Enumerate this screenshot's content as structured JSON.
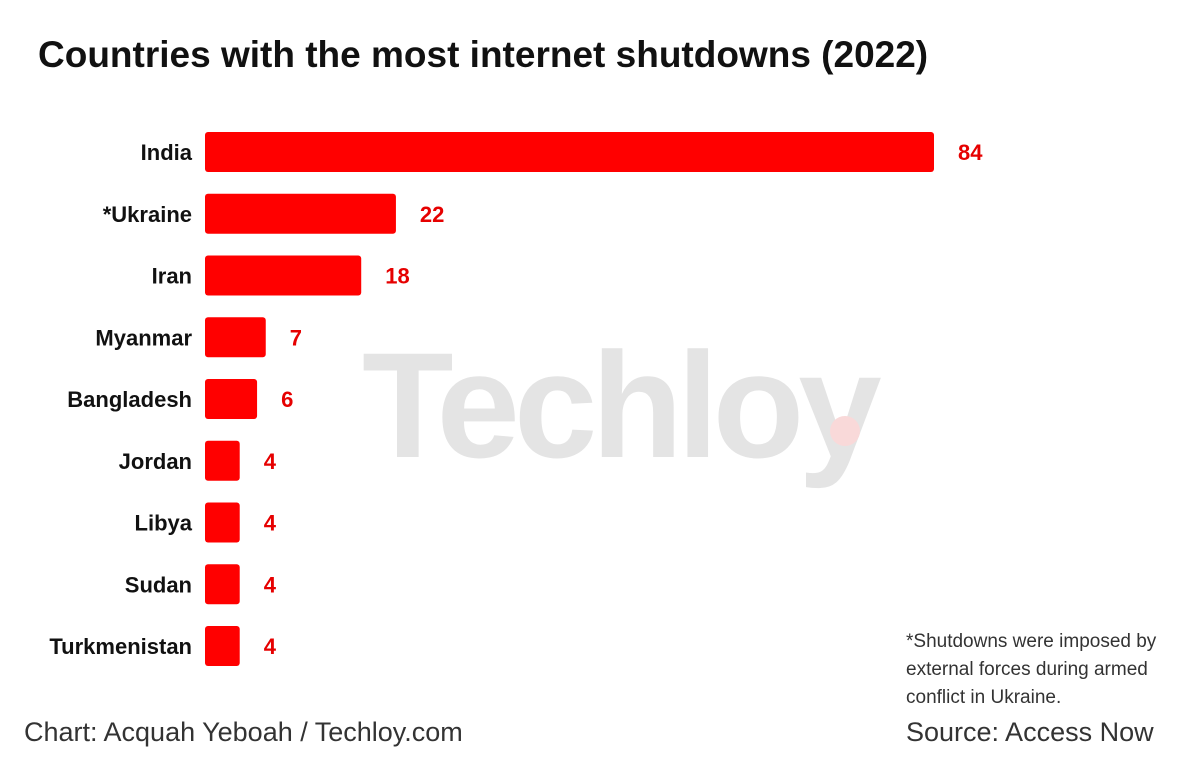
{
  "title": "Countries with the most internet shutdowns (2022)",
  "watermark": "Techloy",
  "footnote_lines": [
    "*Shutdowns were imposed by",
    "external forces during armed",
    "conflict in Ukraine."
  ],
  "credit": "Chart: Acquah Yeboah / Techloy.com",
  "source": "Source: Access Now",
  "colors": {
    "bar": "#ff0000",
    "value_label": "#e60000",
    "category_label": "#111111"
  },
  "chart_data": {
    "type": "bar",
    "orientation": "horizontal",
    "title": "Countries with the most internet shutdowns (2022)",
    "categories": [
      "India",
      "*Ukraine",
      "Iran",
      "Myanmar",
      "Bangladesh",
      "Jordan",
      "Libya",
      "Sudan",
      "Turkmenistan"
    ],
    "values": [
      84,
      22,
      18,
      7,
      6,
      4,
      4,
      4,
      4
    ],
    "value_labels": [
      "84",
      "22",
      "18",
      "7",
      "6",
      "4",
      "4",
      "4",
      "4"
    ],
    "xlabel": "",
    "ylabel": "",
    "xlim": [
      0,
      84
    ],
    "grid": false,
    "legend": "none"
  }
}
